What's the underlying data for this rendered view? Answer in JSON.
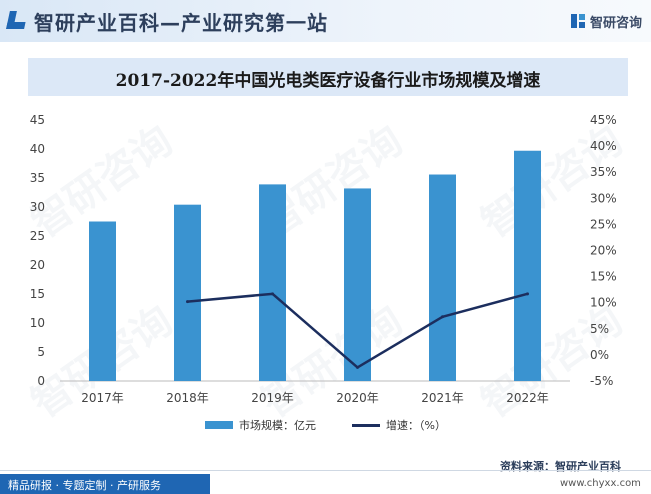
{
  "header": {
    "title": "智研产业百科—产业研究第一站",
    "brand": "智研咨询"
  },
  "chart_data": {
    "type": "bar",
    "title": "2017-2022年中国光电类医疗设备行业市场规模及增速",
    "categories": [
      "2017年",
      "2018年",
      "2019年",
      "2020年",
      "2021年",
      "2022年"
    ],
    "series": [
      {
        "name": "市场规模：亿元",
        "type": "bar",
        "axis": "left",
        "values": [
          27.5,
          30.4,
          33.9,
          33.2,
          35.6,
          39.7
        ]
      },
      {
        "name": "增速：（%）",
        "type": "line",
        "axis": "right",
        "values": [
          null,
          10.2,
          11.7,
          -2.4,
          7.3,
          11.7
        ]
      }
    ],
    "y_left": {
      "min": 0,
      "max": 45,
      "ticks": [
        "0",
        "5",
        "10",
        "15",
        "20",
        "25",
        "30",
        "35",
        "40",
        "45"
      ]
    },
    "y_right": {
      "min": -5,
      "max": 45,
      "ticks": [
        "-5%",
        "0%",
        "5%",
        "10%",
        "15%",
        "20%",
        "25%",
        "30%",
        "35%",
        "40%",
        "45%"
      ]
    },
    "legend_position": "bottom",
    "grid": false,
    "colors": {
      "bar": "#3a93d0",
      "line": "#1c2e5e"
    }
  },
  "footer": {
    "source": "资料来源：智研产业百科",
    "left": "精品研报 · 专题定制 · 产研服务",
    "url": "www.chyxx.com"
  }
}
